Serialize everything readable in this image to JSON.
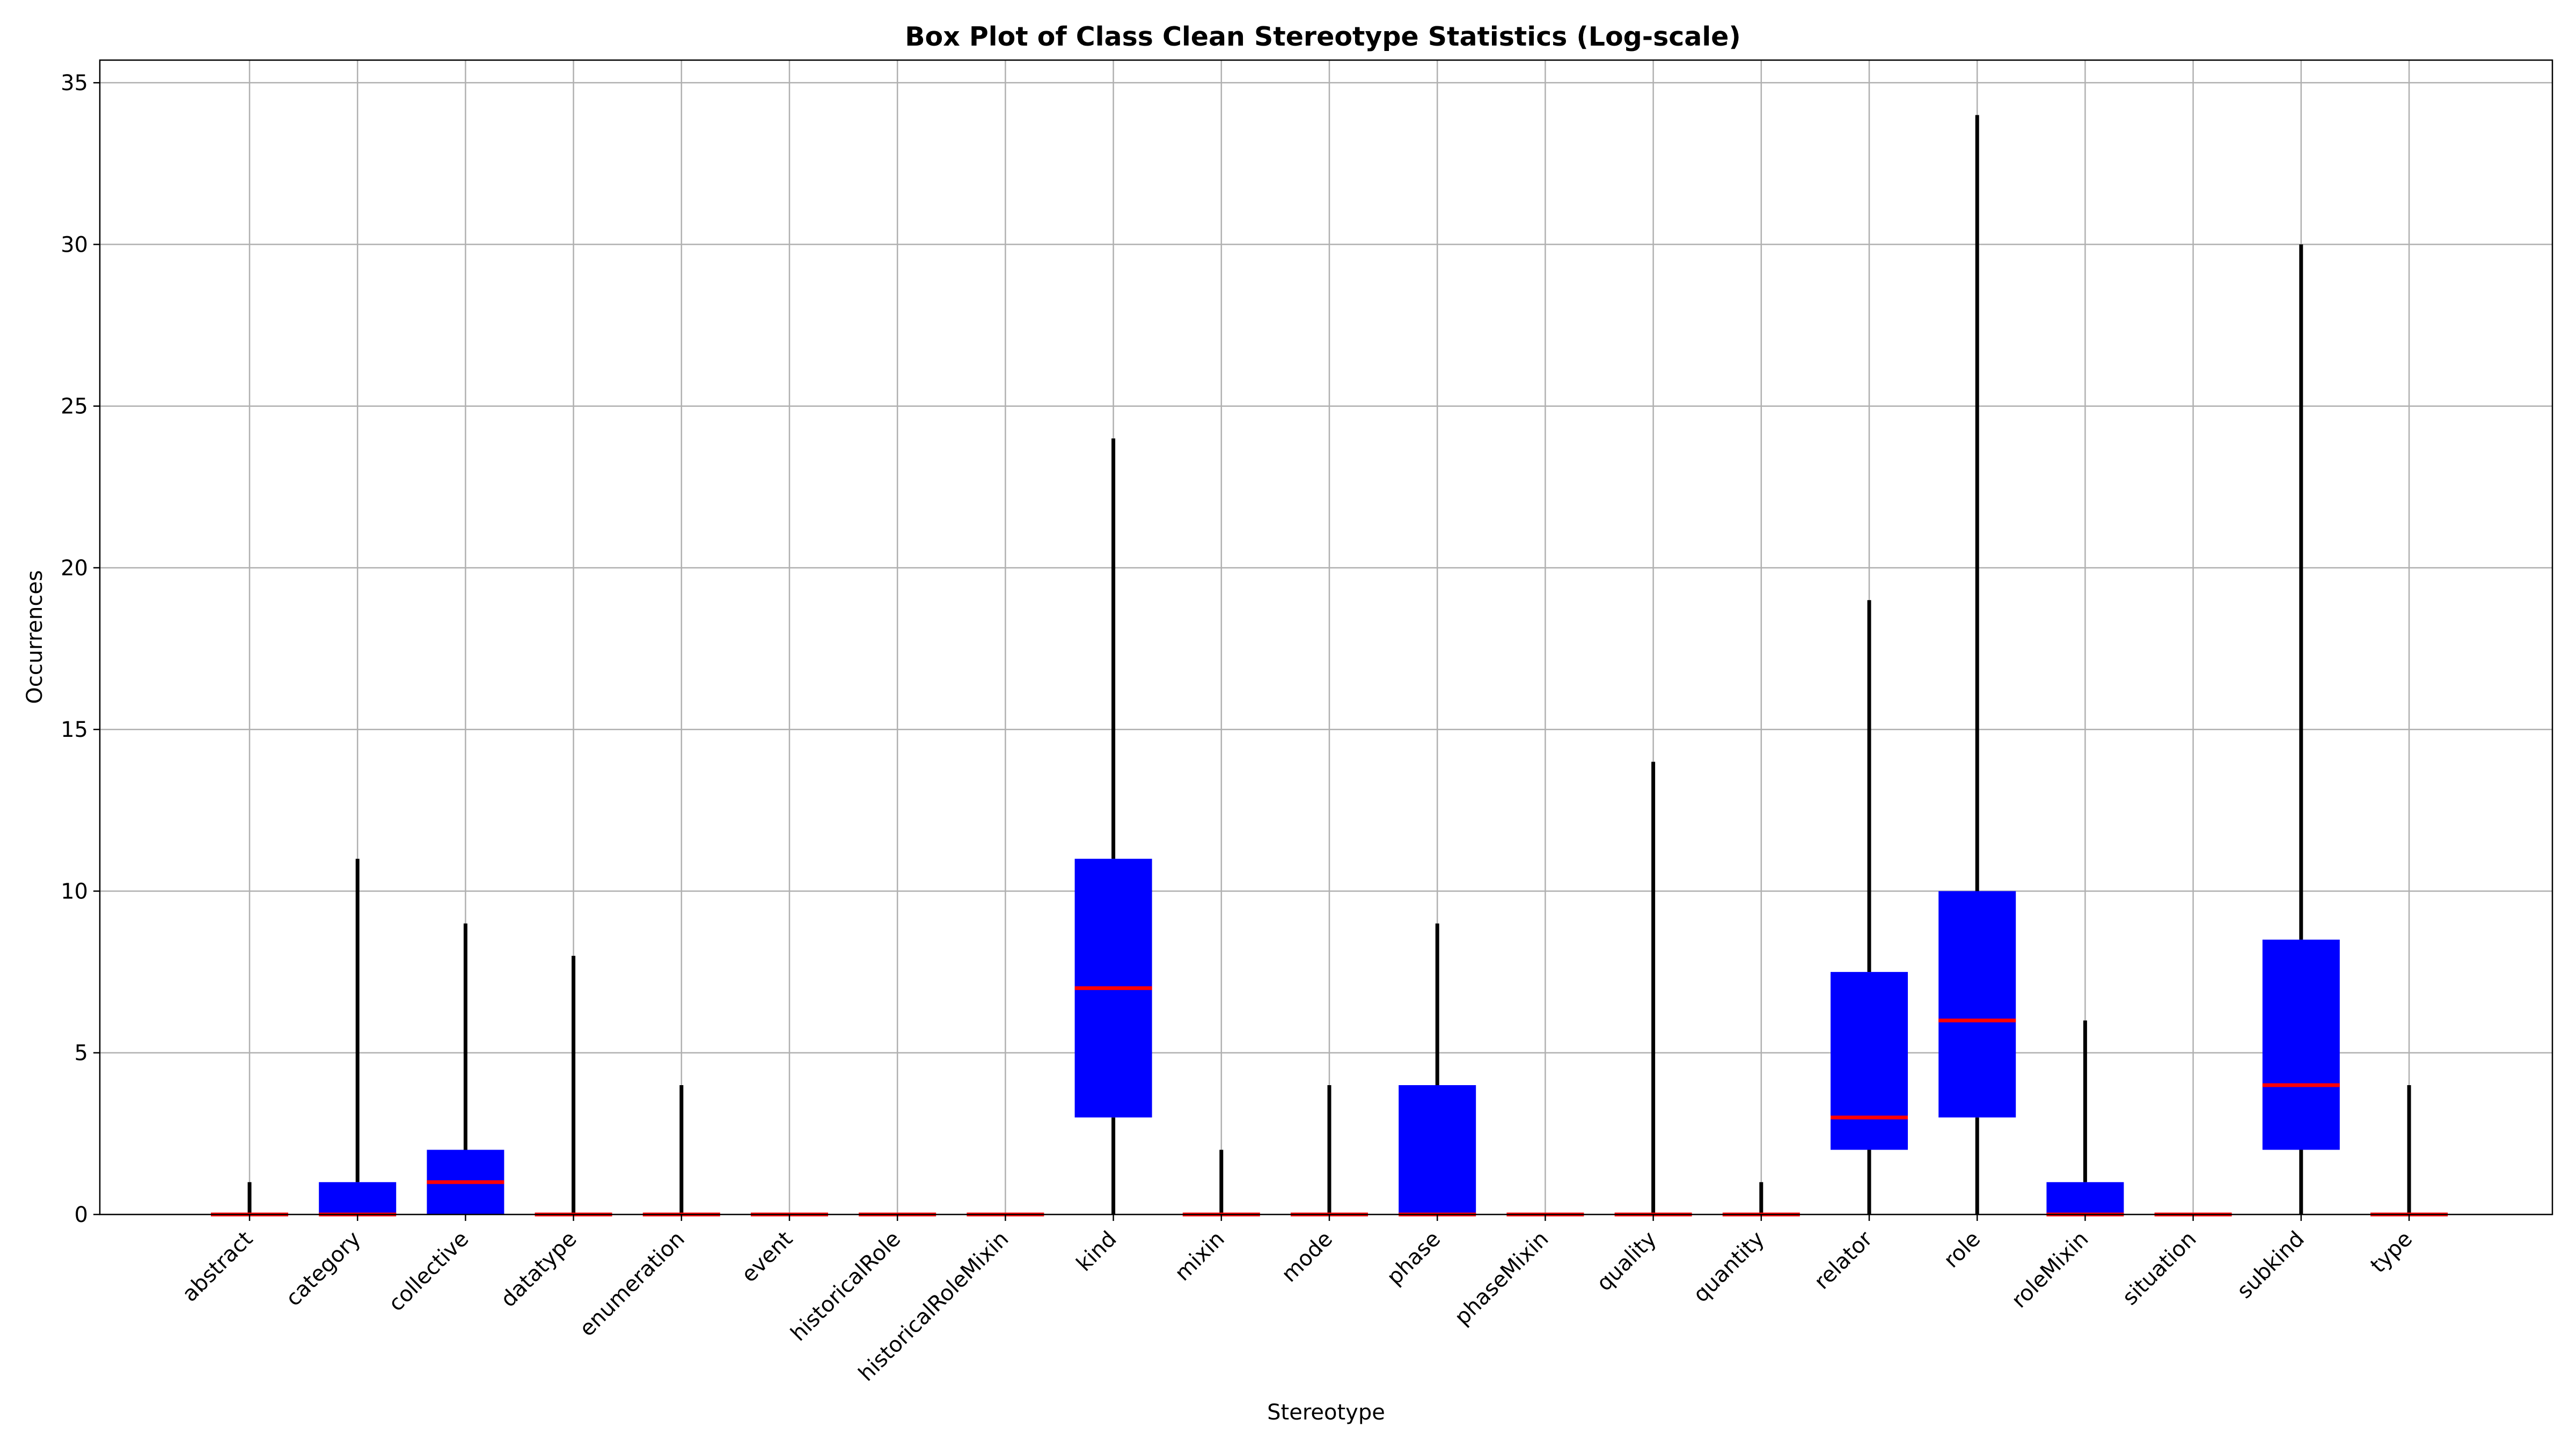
{
  "chart_data": {
    "type": "box",
    "title": "Box Plot of Class Clean Stereotype Statistics (Log-scale)",
    "xlabel": "Stereotype",
    "ylabel": "Occurrences",
    "ylim": [
      0,
      35.7
    ],
    "yticks": [
      0,
      5,
      10,
      15,
      20,
      25,
      30,
      35
    ],
    "grid": true,
    "colors": {
      "box": "#0000ff",
      "median": "#ff0000",
      "whisker": "#000000",
      "grid": "#b0b0b0"
    },
    "categories": [
      "abstract",
      "category",
      "collective",
      "datatype",
      "enumeration",
      "event",
      "historicalRole",
      "historicalRoleMixin",
      "kind",
      "mixin",
      "mode",
      "phase",
      "phaseMixin",
      "quality",
      "quantity",
      "relator",
      "role",
      "roleMixin",
      "situation",
      "subkind",
      "type"
    ],
    "boxes": [
      {
        "min": 0,
        "q1": 0,
        "median": 0,
        "q3": 0,
        "max": 1
      },
      {
        "min": 0,
        "q1": 0,
        "median": 0,
        "q3": 1,
        "max": 11
      },
      {
        "min": 0,
        "q1": 0,
        "median": 1,
        "q3": 2,
        "max": 9
      },
      {
        "min": 0,
        "q1": 0,
        "median": 0,
        "q3": 0,
        "max": 8
      },
      {
        "min": 0,
        "q1": 0,
        "median": 0,
        "q3": 0,
        "max": 4
      },
      {
        "min": 0,
        "q1": 0,
        "median": 0,
        "q3": 0,
        "max": 0
      },
      {
        "min": 0,
        "q1": 0,
        "median": 0,
        "q3": 0,
        "max": 0
      },
      {
        "min": 0,
        "q1": 0,
        "median": 0,
        "q3": 0,
        "max": 0
      },
      {
        "min": 0,
        "q1": 3,
        "median": 7,
        "q3": 11,
        "max": 24
      },
      {
        "min": 0,
        "q1": 0,
        "median": 0,
        "q3": 0,
        "max": 2
      },
      {
        "min": 0,
        "q1": 0,
        "median": 0,
        "q3": 0,
        "max": 4
      },
      {
        "min": 0,
        "q1": 0,
        "median": 0,
        "q3": 4,
        "max": 9
      },
      {
        "min": 0,
        "q1": 0,
        "median": 0,
        "q3": 0,
        "max": 0
      },
      {
        "min": 0,
        "q1": 0,
        "median": 0,
        "q3": 0,
        "max": 14
      },
      {
        "min": 0,
        "q1": 0,
        "median": 0,
        "q3": 0,
        "max": 1
      },
      {
        "min": 0,
        "q1": 2,
        "median": 3,
        "q3": 7.5,
        "max": 19
      },
      {
        "min": 0,
        "q1": 3,
        "median": 6,
        "q3": 10,
        "max": 34
      },
      {
        "min": 0,
        "q1": 0,
        "median": 0,
        "q3": 1,
        "max": 6
      },
      {
        "min": 0,
        "q1": 0,
        "median": 0,
        "q3": 0,
        "max": 0
      },
      {
        "min": 0,
        "q1": 2,
        "median": 4,
        "q3": 8.5,
        "max": 30
      },
      {
        "min": 0,
        "q1": 0,
        "median": 0,
        "q3": 0,
        "max": 4
      }
    ]
  }
}
